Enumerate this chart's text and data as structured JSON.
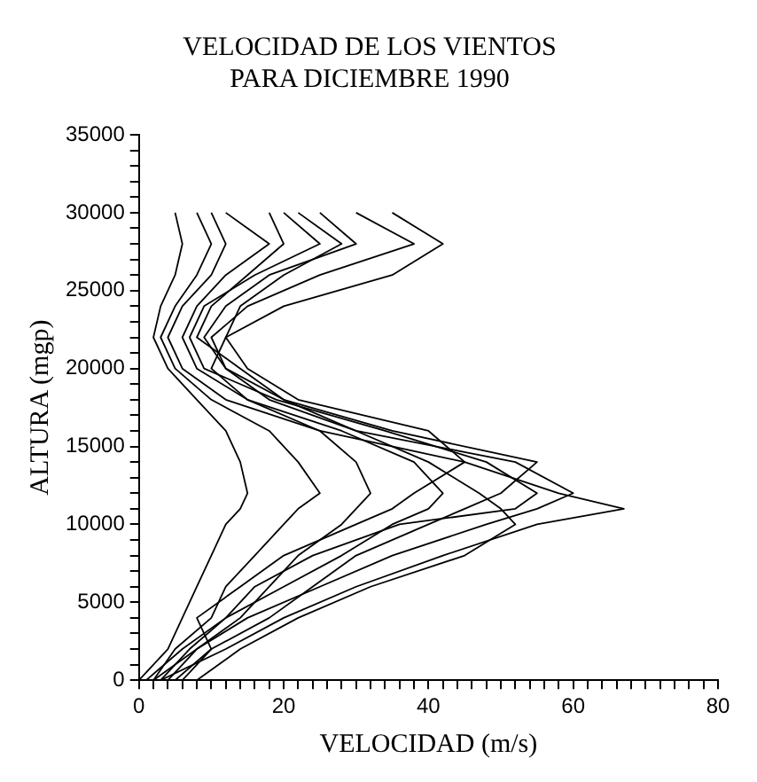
{
  "chart_data": {
    "type": "line",
    "title": "VELOCIDAD DE LOS VIENTOS\nPARA DICIEMBRE 1990",
    "xlabel": "VELOCIDAD (m/s)",
    "ylabel": "ALTURA (mgp)",
    "xlim": [
      0,
      80
    ],
    "ylim": [
      0,
      35000
    ],
    "xticks": [
      0,
      {
        "value": 2,
        "label": null
      },
      {
        "value": 4,
        "label": null
      },
      {
        "value": 6,
        "label": null
      },
      {
        "value": 8,
        "label": null
      },
      {
        "value": 10,
        "label": null
      },
      {
        "value": 12,
        "label": null
      },
      {
        "value": 14,
        "label": null
      },
      {
        "value": 16,
        "label": null
      },
      {
        "value": 18,
        "label": null
      },
      20,
      {
        "value": 22,
        "label": null
      },
      {
        "value": 24,
        "label": null
      },
      {
        "value": 26,
        "label": null
      },
      {
        "value": 28,
        "label": null
      },
      {
        "value": 30,
        "label": null
      },
      {
        "value": 32,
        "label": null
      },
      {
        "value": 34,
        "label": null
      },
      {
        "value": 36,
        "label": null
      },
      {
        "value": 38,
        "label": null
      },
      40,
      {
        "value": 42,
        "label": null
      },
      {
        "value": 44,
        "label": null
      },
      {
        "value": 46,
        "label": null
      },
      {
        "value": 48,
        "label": null
      },
      {
        "value": 50,
        "label": null
      },
      {
        "value": 52,
        "label": null
      },
      {
        "value": 54,
        "label": null
      },
      {
        "value": 56,
        "label": null
      },
      {
        "value": 58,
        "label": null
      },
      60,
      {
        "value": 62,
        "label": null
      },
      {
        "value": 64,
        "label": null
      },
      {
        "value": 66,
        "label": null
      },
      {
        "value": 68,
        "label": null
      },
      {
        "value": 70,
        "label": null
      },
      {
        "value": 72,
        "label": null
      },
      {
        "value": 74,
        "label": null
      },
      {
        "value": 76,
        "label": null
      },
      {
        "value": 78,
        "label": null
      },
      80
    ],
    "yticks": [
      0,
      {
        "value": 1000,
        "label": null
      },
      {
        "value": 2000,
        "label": null
      },
      {
        "value": 3000,
        "label": null
      },
      {
        "value": 4000,
        "label": null
      },
      5000,
      {
        "value": 6000,
        "label": null
      },
      {
        "value": 7000,
        "label": null
      },
      {
        "value": 8000,
        "label": null
      },
      {
        "value": 9000,
        "label": null
      },
      10000,
      {
        "value": 11000,
        "label": null
      },
      {
        "value": 12000,
        "label": null
      },
      {
        "value": 13000,
        "label": null
      },
      {
        "value": 14000,
        "label": null
      },
      15000,
      {
        "value": 16000,
        "label": null
      },
      {
        "value": 17000,
        "label": null
      },
      {
        "value": 18000,
        "label": null
      },
      {
        "value": 19000,
        "label": null
      },
      20000,
      {
        "value": 21000,
        "label": null
      },
      {
        "value": 22000,
        "label": null
      },
      {
        "value": 23000,
        "label": null
      },
      {
        "value": 24000,
        "label": null
      },
      25000,
      {
        "value": 26000,
        "label": null
      },
      {
        "value": 27000,
        "label": null
      },
      {
        "value": 28000,
        "label": null
      },
      {
        "value": 29000,
        "label": null
      },
      30000,
      {
        "value": 31000,
        "label": null
      },
      {
        "value": 32000,
        "label": null
      },
      {
        "value": 33000,
        "label": null
      },
      {
        "value": 34000,
        "label": null
      },
      35000
    ],
    "grid": false,
    "legend": false,
    "marker": "none",
    "line_style": "solid",
    "series": [
      {
        "color": "#000000",
        "x": [
          3,
          12,
          20,
          30,
          42,
          55,
          67,
          58,
          45,
          25,
          15,
          10,
          12,
          20,
          35,
          42,
          35
        ],
        "values": [
          0,
          2000,
          4000,
          6000,
          8000,
          10000,
          11000,
          12000,
          14000,
          16000,
          18000,
          20000,
          22000,
          24000,
          26000,
          28000,
          30000
        ]
      },
      {
        "color": "#000000",
        "x": [
          2,
          8,
          15,
          25,
          35,
          48,
          55,
          60,
          52,
          30,
          18,
          12,
          10,
          15,
          25,
          38,
          30
        ],
        "values": [
          0,
          2000,
          4000,
          6000,
          8000,
          10000,
          11000,
          12000,
          14000,
          16000,
          18000,
          20000,
          22000,
          24000,
          26000,
          28000,
          30000
        ]
      },
      {
        "color": "#000000",
        "x": [
          5,
          10,
          18,
          24,
          30,
          40,
          45,
          50,
          55,
          35,
          20,
          14,
          8,
          10,
          15,
          20,
          18
        ],
        "values": [
          0,
          2000,
          4000,
          6000,
          8000,
          10000,
          11000,
          12000,
          14000,
          16000,
          18000,
          20000,
          22000,
          24000,
          26000,
          28000,
          30000
        ]
      },
      {
        "color": "#000000",
        "x": [
          1,
          6,
          12,
          20,
          28,
          35,
          40,
          42,
          38,
          28,
          15,
          8,
          6,
          8,
          12,
          18,
          12
        ],
        "values": [
          0,
          2000,
          4000,
          6000,
          8000,
          10000,
          11000,
          12000,
          14000,
          16000,
          18000,
          20000,
          22000,
          24000,
          26000,
          28000,
          30000
        ]
      },
      {
        "color": "#000000",
        "x": [
          4,
          8,
          14,
          18,
          22,
          28,
          30,
          32,
          30,
          25,
          12,
          6,
          4,
          6,
          10,
          12,
          10
        ],
        "values": [
          0,
          2000,
          4000,
          6000,
          8000,
          10000,
          11000,
          12000,
          14000,
          16000,
          18000,
          20000,
          22000,
          24000,
          26000,
          28000,
          30000
        ]
      },
      {
        "color": "#000000",
        "x": [
          2,
          5,
          10,
          12,
          16,
          20,
          22,
          25,
          22,
          18,
          10,
          5,
          3,
          5,
          8,
          10,
          8
        ],
        "values": [
          0,
          2000,
          4000,
          6000,
          8000,
          10000,
          11000,
          12000,
          14000,
          16000,
          18000,
          20000,
          22000,
          24000,
          26000,
          28000,
          30000
        ]
      },
      {
        "color": "#000000",
        "x": [
          6,
          10,
          8,
          14,
          20,
          30,
          35,
          38,
          45,
          40,
          22,
          15,
          12,
          14,
          20,
          28,
          22
        ],
        "values": [
          0,
          2000,
          4000,
          6000,
          8000,
          10000,
          11000,
          12000,
          14000,
          16000,
          18000,
          20000,
          22000,
          24000,
          26000,
          28000,
          30000
        ]
      },
      {
        "color": "#000000",
        "x": [
          0,
          4,
          6,
          8,
          10,
          12,
          14,
          15,
          14,
          12,
          8,
          4,
          2,
          3,
          5,
          6,
          5
        ],
        "values": [
          0,
          2000,
          4000,
          6000,
          8000,
          10000,
          11000,
          12000,
          14000,
          16000,
          18000,
          20000,
          22000,
          24000,
          26000,
          28000,
          30000
        ]
      },
      {
        "color": "#000000",
        "x": [
          8,
          14,
          22,
          32,
          45,
          52,
          50,
          47,
          40,
          30,
          20,
          12,
          9,
          12,
          18,
          30,
          25
        ],
        "values": [
          0,
          2000,
          4000,
          6000,
          8000,
          10000,
          11000,
          12000,
          14000,
          16000,
          18000,
          20000,
          22000,
          24000,
          26000,
          28000,
          30000
        ]
      },
      {
        "color": "#000000",
        "x": [
          3,
          7,
          12,
          16,
          24,
          36,
          52,
          55,
          48,
          34,
          19,
          9,
          7,
          9,
          16,
          25,
          20
        ],
        "values": [
          0,
          2000,
          4000,
          6000,
          8000,
          10000,
          11000,
          12000,
          14000,
          16000,
          18000,
          20000,
          22000,
          24000,
          26000,
          28000,
          30000
        ]
      }
    ]
  }
}
